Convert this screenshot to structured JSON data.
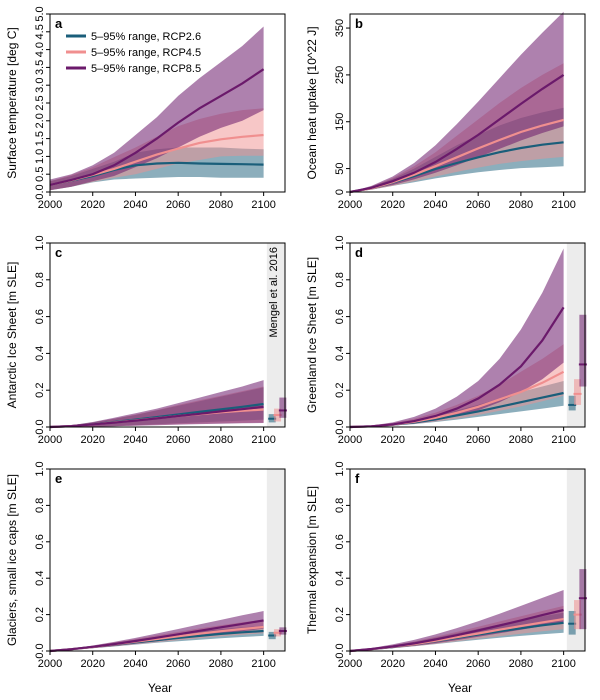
{
  "colors": {
    "RCP2.6": "#1a5e7a",
    "RCP4.5": "#f08f8f",
    "RCP8.5": "#6b1a6b"
  },
  "legend": [
    {
      "label": "5–95% range, RCP2.6",
      "key": "RCP2.6"
    },
    {
      "label": "5–95% range, RCP4.5",
      "key": "RCP4.5"
    },
    {
      "label": "5–95% range, RCP8.5",
      "key": "RCP8.5"
    }
  ],
  "shared_xlabel": "Year",
  "chart_data": [
    {
      "type": "area",
      "letter": "a",
      "ylabel": "Surface temperature [deg C]",
      "xlim": [
        2000,
        2110
      ],
      "ylim": [
        0,
        5
      ],
      "xticks": [
        "2000",
        "2020",
        "2040",
        "2060",
        "2080",
        "2100"
      ],
      "yticks": [
        "0.0",
        "0.5",
        "1.0",
        "1.5",
        "2.0",
        "2.5",
        "3.0",
        "3.5",
        "4.0",
        "4.5",
        "5.0"
      ],
      "ytick_values": [
        0,
        0.5,
        1,
        1.5,
        2,
        2.5,
        3,
        3.5,
        4,
        4.5,
        5
      ],
      "x": [
        2000,
        2010,
        2020,
        2030,
        2040,
        2050,
        2060,
        2070,
        2080,
        2090,
        2100
      ],
      "series": [
        {
          "key": "RCP2.6",
          "mid": [
            0.2,
            0.32,
            0.45,
            0.62,
            0.75,
            0.8,
            0.82,
            0.8,
            0.79,
            0.78,
            0.77
          ],
          "lo": [
            0.05,
            0.15,
            0.27,
            0.35,
            0.38,
            0.4,
            0.42,
            0.42,
            0.4,
            0.4,
            0.4
          ],
          "hi": [
            0.3,
            0.45,
            0.65,
            0.85,
            1.1,
            1.2,
            1.25,
            1.25,
            1.25,
            1.22,
            1.2
          ]
        },
        {
          "key": "RCP4.5",
          "mid": [
            0.2,
            0.33,
            0.48,
            0.65,
            0.85,
            1.05,
            1.22,
            1.38,
            1.48,
            1.55,
            1.6
          ],
          "lo": [
            0.05,
            0.15,
            0.28,
            0.4,
            0.5,
            0.65,
            0.8,
            0.9,
            1.0,
            1.02,
            1.02
          ],
          "hi": [
            0.3,
            0.48,
            0.7,
            0.98,
            1.25,
            1.55,
            1.85,
            2.05,
            2.2,
            2.3,
            2.35
          ]
        },
        {
          "key": "RCP8.5",
          "mid": [
            0.2,
            0.34,
            0.5,
            0.75,
            1.1,
            1.5,
            1.95,
            2.35,
            2.7,
            3.05,
            3.45
          ],
          "lo": [
            0.05,
            0.15,
            0.3,
            0.45,
            0.7,
            0.95,
            1.25,
            1.55,
            1.8,
            2.0,
            2.3
          ],
          "hi": [
            0.35,
            0.5,
            0.75,
            1.1,
            1.6,
            2.1,
            2.7,
            3.2,
            3.65,
            4.1,
            4.65
          ]
        }
      ]
    },
    {
      "type": "area",
      "letter": "b",
      "ylabel": "Ocean heat uptake [10^22 J]",
      "xlim": [
        2000,
        2110
      ],
      "ylim": [
        0,
        380
      ],
      "xticks": [
        "2000",
        "2020",
        "2040",
        "2060",
        "2080",
        "2100"
      ],
      "yticks": [
        "0",
        "50",
        "150",
        "250",
        "350"
      ],
      "ytick_values": [
        0,
        50,
        150,
        250,
        350
      ],
      "x": [
        2000,
        2010,
        2020,
        2030,
        2040,
        2050,
        2060,
        2070,
        2080,
        2090,
        2100
      ],
      "series": [
        {
          "key": "RCP2.6",
          "mid": [
            0,
            8,
            20,
            34,
            49,
            62,
            74,
            85,
            94,
            101,
            106
          ],
          "lo": [
            0,
            5,
            13,
            21,
            29,
            36,
            42,
            47,
            51,
            53,
            55
          ],
          "hi": [
            0,
            12,
            28,
            50,
            75,
            100,
            122,
            142,
            158,
            170,
            180
          ]
        },
        {
          "key": "RCP4.5",
          "mid": [
            0,
            8,
            21,
            37,
            55,
            74,
            93,
            111,
            128,
            142,
            154
          ],
          "lo": [
            0,
            5,
            13,
            23,
            33,
            43,
            52,
            60,
            66,
            71,
            75
          ],
          "hi": [
            0,
            12,
            30,
            55,
            85,
            120,
            155,
            190,
            222,
            250,
            275
          ]
        },
        {
          "key": "RCP8.5",
          "mid": [
            0,
            9,
            23,
            41,
            64,
            92,
            122,
            155,
            188,
            220,
            250
          ],
          "lo": [
            0,
            6,
            15,
            27,
            41,
            57,
            74,
            92,
            110,
            126,
            140
          ],
          "hi": [
            0,
            13,
            33,
            62,
            100,
            145,
            193,
            243,
            293,
            340,
            385
          ]
        }
      ]
    },
    {
      "type": "area",
      "letter": "c",
      "ylabel": "Antarctic Ice Sheet [m SLE]",
      "note": "Mengel et al. 2016",
      "xlim": [
        2000,
        2110
      ],
      "ylim": [
        0,
        1
      ],
      "xticks": [
        "2000",
        "2020",
        "2040",
        "2060",
        "2080",
        "2100"
      ],
      "yticks": [
        "0.0",
        "0.2",
        "0.4",
        "0.6",
        "0.8",
        "1.0"
      ],
      "ytick_values": [
        0,
        0.2,
        0.4,
        0.6,
        0.8,
        1.0
      ],
      "x": [
        2000,
        2010,
        2020,
        2030,
        2040,
        2050,
        2060,
        2070,
        2080,
        2090,
        2100
      ],
      "series": [
        {
          "key": "RCP2.6",
          "mid": [
            0,
            0.005,
            0.015,
            0.027,
            0.04,
            0.054,
            0.068,
            0.082,
            0.096,
            0.11,
            0.125
          ],
          "lo": [
            0,
            0,
            0.002,
            0.005,
            0.01,
            0.015,
            0.02,
            0.025,
            0.03,
            0.035,
            0.04
          ],
          "hi": [
            0,
            0.01,
            0.025,
            0.045,
            0.065,
            0.09,
            0.115,
            0.14,
            0.165,
            0.19,
            0.215
          ]
        },
        {
          "key": "RCP4.5",
          "mid": [
            0,
            0.005,
            0.014,
            0.025,
            0.036,
            0.048,
            0.06,
            0.07,
            0.08,
            0.088,
            0.095
          ],
          "lo": [
            0,
            0,
            0.002,
            0.005,
            0.008,
            0.012,
            0.015,
            0.018,
            0.02,
            0.022,
            0.024
          ],
          "hi": [
            0,
            0.01,
            0.025,
            0.045,
            0.068,
            0.092,
            0.12,
            0.145,
            0.17,
            0.195,
            0.22
          ]
        },
        {
          "key": "RCP8.5",
          "mid": [
            0,
            0.005,
            0.014,
            0.024,
            0.035,
            0.047,
            0.06,
            0.072,
            0.085,
            0.097,
            0.11
          ],
          "lo": [
            0,
            0,
            0.002,
            0.004,
            0.007,
            0.01,
            0.013,
            0.016,
            0.018,
            0.02,
            0.022
          ],
          "hi": [
            0,
            0.01,
            0.027,
            0.05,
            0.075,
            0.1,
            0.13,
            0.16,
            0.19,
            0.22,
            0.255
          ]
        }
      ],
      "bars": [
        {
          "key": "RCP2.6",
          "x": 2104,
          "lo": 0.025,
          "mid": 0.045,
          "hi": 0.07
        },
        {
          "key": "RCP4.5",
          "x": 2106.5,
          "lo": 0.03,
          "mid": 0.065,
          "hi": 0.1
        },
        {
          "key": "RCP8.5",
          "x": 2109,
          "lo": 0.05,
          "mid": 0.09,
          "hi": 0.16
        }
      ]
    },
    {
      "type": "area",
      "letter": "d",
      "ylabel": "Greenland Ice Sheet [m SLE]",
      "xlim": [
        2000,
        2110
      ],
      "ylim": [
        0,
        1
      ],
      "xticks": [
        "2000",
        "2020",
        "2040",
        "2060",
        "2080",
        "2100"
      ],
      "yticks": [
        "0.0",
        "0.2",
        "0.4",
        "0.6",
        "0.8",
        "1.0"
      ],
      "ytick_values": [
        0,
        0.2,
        0.4,
        0.6,
        0.8,
        1.0
      ],
      "x": [
        2000,
        2010,
        2020,
        2030,
        2040,
        2050,
        2060,
        2070,
        2080,
        2090,
        2100
      ],
      "series": [
        {
          "key": "RCP2.6",
          "mid": [
            0,
            0.004,
            0.012,
            0.025,
            0.042,
            0.063,
            0.085,
            0.11,
            0.135,
            0.16,
            0.185
          ],
          "lo": [
            0,
            0.002,
            0.008,
            0.016,
            0.027,
            0.04,
            0.055,
            0.07,
            0.085,
            0.1,
            0.115
          ],
          "hi": [
            0,
            0.006,
            0.018,
            0.036,
            0.06,
            0.09,
            0.12,
            0.155,
            0.19,
            0.22,
            0.25
          ]
        },
        {
          "key": "RCP4.5",
          "mid": [
            0,
            0.004,
            0.013,
            0.028,
            0.05,
            0.077,
            0.11,
            0.15,
            0.19,
            0.24,
            0.3
          ],
          "lo": [
            0,
            0.002,
            0.008,
            0.017,
            0.03,
            0.045,
            0.065,
            0.088,
            0.112,
            0.14,
            0.17
          ],
          "hi": [
            0,
            0.007,
            0.022,
            0.045,
            0.078,
            0.12,
            0.17,
            0.23,
            0.3,
            0.37,
            0.45
          ]
        },
        {
          "key": "RCP8.5",
          "mid": [
            0,
            0.004,
            0.014,
            0.032,
            0.06,
            0.1,
            0.155,
            0.23,
            0.33,
            0.47,
            0.65
          ],
          "lo": [
            0,
            0.002,
            0.008,
            0.018,
            0.035,
            0.06,
            0.09,
            0.135,
            0.19,
            0.26,
            0.35
          ],
          "hi": [
            0,
            0.008,
            0.025,
            0.055,
            0.1,
            0.165,
            0.25,
            0.37,
            0.53,
            0.73,
            0.97
          ]
        }
      ],
      "bars": [
        {
          "key": "RCP2.6",
          "x": 2104,
          "lo": 0.09,
          "mid": 0.12,
          "hi": 0.17
        },
        {
          "key": "RCP4.5",
          "x": 2106.5,
          "lo": 0.12,
          "mid": 0.18,
          "hi": 0.26
        },
        {
          "key": "RCP8.5",
          "x": 2109,
          "lo": 0.22,
          "mid": 0.34,
          "hi": 0.61
        }
      ]
    },
    {
      "type": "area",
      "letter": "e",
      "ylabel": "Glaciers, small ice caps [m SLE]",
      "xlim": [
        2000,
        2110
      ],
      "ylim": [
        0,
        1
      ],
      "xticks": [
        "2000",
        "2020",
        "2040",
        "2060",
        "2080",
        "2100"
      ],
      "yticks": [
        "0.0",
        "0.2",
        "0.4",
        "0.6",
        "0.8",
        "1.0"
      ],
      "ytick_values": [
        0,
        0.2,
        0.4,
        0.6,
        0.8,
        1.0
      ],
      "x": [
        2000,
        2010,
        2020,
        2030,
        2040,
        2050,
        2060,
        2070,
        2080,
        2090,
        2100
      ],
      "series": [
        {
          "key": "RCP2.6",
          "mid": [
            0,
            0.01,
            0.022,
            0.035,
            0.048,
            0.06,
            0.072,
            0.083,
            0.094,
            0.103,
            0.11
          ],
          "lo": [
            0,
            0.007,
            0.015,
            0.025,
            0.035,
            0.045,
            0.054,
            0.062,
            0.07,
            0.077,
            0.083
          ],
          "hi": [
            0,
            0.013,
            0.028,
            0.045,
            0.062,
            0.078,
            0.094,
            0.108,
            0.12,
            0.13,
            0.138
          ]
        },
        {
          "key": "RCP4.5",
          "mid": [
            0,
            0.01,
            0.022,
            0.036,
            0.051,
            0.066,
            0.081,
            0.095,
            0.109,
            0.121,
            0.132
          ],
          "lo": [
            0,
            0.007,
            0.016,
            0.026,
            0.037,
            0.048,
            0.059,
            0.07,
            0.08,
            0.089,
            0.097
          ],
          "hi": [
            0,
            0.013,
            0.029,
            0.047,
            0.066,
            0.086,
            0.105,
            0.124,
            0.142,
            0.158,
            0.172
          ]
        },
        {
          "key": "RCP8.5",
          "mid": [
            0,
            0.01,
            0.023,
            0.038,
            0.055,
            0.073,
            0.092,
            0.111,
            0.13,
            0.149,
            0.168
          ],
          "lo": [
            0,
            0.007,
            0.016,
            0.027,
            0.04,
            0.053,
            0.067,
            0.081,
            0.095,
            0.109,
            0.122
          ],
          "hi": [
            0,
            0.013,
            0.03,
            0.05,
            0.072,
            0.096,
            0.121,
            0.146,
            0.171,
            0.196,
            0.22
          ]
        }
      ],
      "bars": [
        {
          "key": "RCP2.6",
          "x": 2104,
          "lo": 0.065,
          "mid": 0.085,
          "hi": 0.105
        },
        {
          "key": "RCP4.5",
          "x": 2106.5,
          "lo": 0.08,
          "mid": 0.1,
          "hi": 0.12
        },
        {
          "key": "RCP8.5",
          "x": 2109,
          "lo": 0.09,
          "mid": 0.11,
          "hi": 0.13
        }
      ]
    },
    {
      "type": "area",
      "letter": "f",
      "ylabel": "Thermal expansion [m SLE]",
      "xlim": [
        2000,
        2110
      ],
      "ylim": [
        0,
        1
      ],
      "xticks": [
        "2000",
        "2020",
        "2040",
        "2060",
        "2080",
        "2100"
      ],
      "yticks": [
        "0.0",
        "0.2",
        "0.4",
        "0.6",
        "0.8",
        "1.0"
      ],
      "ytick_values": [
        0,
        0.2,
        0.4,
        0.6,
        0.8,
        1.0
      ],
      "x": [
        2000,
        2010,
        2020,
        2030,
        2040,
        2050,
        2060,
        2070,
        2080,
        2090,
        2100
      ],
      "series": [
        {
          "key": "RCP2.6",
          "mid": [
            0,
            0.01,
            0.022,
            0.037,
            0.054,
            0.072,
            0.09,
            0.108,
            0.125,
            0.141,
            0.155
          ],
          "lo": [
            0,
            0.006,
            0.015,
            0.026,
            0.038,
            0.05,
            0.062,
            0.073,
            0.083,
            0.092,
            0.1
          ],
          "hi": [
            0,
            0.014,
            0.03,
            0.05,
            0.073,
            0.097,
            0.122,
            0.146,
            0.169,
            0.19,
            0.21
          ]
        },
        {
          "key": "RCP4.5",
          "mid": [
            0,
            0.01,
            0.023,
            0.038,
            0.056,
            0.076,
            0.096,
            0.117,
            0.137,
            0.157,
            0.175
          ],
          "lo": [
            0,
            0.006,
            0.015,
            0.026,
            0.039,
            0.053,
            0.067,
            0.081,
            0.095,
            0.108,
            0.12
          ],
          "hi": [
            0,
            0.015,
            0.032,
            0.053,
            0.078,
            0.105,
            0.133,
            0.162,
            0.191,
            0.22,
            0.248
          ]
        },
        {
          "key": "RCP8.5",
          "mid": [
            0,
            0.011,
            0.025,
            0.042,
            0.063,
            0.087,
            0.113,
            0.14,
            0.168,
            0.197,
            0.225
          ],
          "lo": [
            0,
            0.007,
            0.016,
            0.028,
            0.043,
            0.06,
            0.078,
            0.097,
            0.117,
            0.137,
            0.157
          ],
          "hi": [
            0,
            0.016,
            0.036,
            0.061,
            0.091,
            0.126,
            0.164,
            0.205,
            0.248,
            0.292,
            0.335
          ]
        }
      ],
      "bars": [
        {
          "key": "RCP2.6",
          "x": 2104,
          "lo": 0.09,
          "mid": 0.15,
          "hi": 0.22
        },
        {
          "key": "RCP4.5",
          "x": 2106.5,
          "lo": 0.12,
          "mid": 0.2,
          "hi": 0.28
        },
        {
          "key": "RCP8.5",
          "x": 2109,
          "lo": 0.12,
          "mid": 0.29,
          "hi": 0.45
        }
      ]
    }
  ]
}
